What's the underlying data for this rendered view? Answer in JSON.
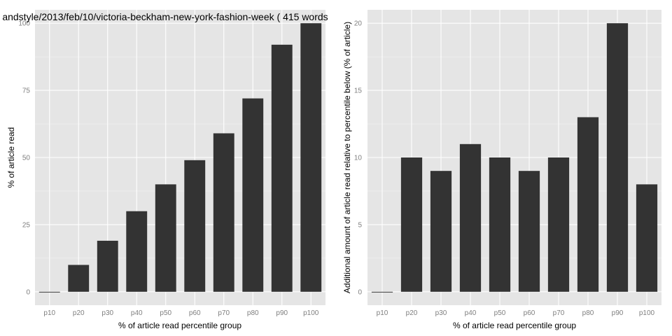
{
  "colors": {
    "panel_background": "#e5e5e5",
    "gridline": "#ffffff",
    "bar_fill": "#333333",
    "tick_label": "#7f7f7f",
    "text": "#000000"
  },
  "chart_data": [
    {
      "type": "bar",
      "title": "andstyle/2013/feb/10/victoria-beckham-new-york-fashion-week ( 415 words",
      "xlabel": "% of article read percentile group",
      "ylabel": "% of article read",
      "categories": [
        "p10",
        "p20",
        "p30",
        "p40",
        "p50",
        "p60",
        "p70",
        "p80",
        "p90",
        "p100"
      ],
      "values": [
        0,
        10,
        19,
        30,
        40,
        49,
        59,
        72,
        92,
        100
      ],
      "ylim": [
        -5,
        105
      ],
      "yticks": [
        0,
        25,
        50,
        75,
        100
      ],
      "ytick_labels": [
        "0",
        "25",
        "50",
        "75",
        "100"
      ],
      "grid": true
    },
    {
      "type": "bar",
      "title": "",
      "xlabel": "% of article read percentile group",
      "ylabel": "Additional amount of article read relative to percentile below (% of article)",
      "categories": [
        "p10",
        "p20",
        "p30",
        "p40",
        "p50",
        "p60",
        "p70",
        "p80",
        "p90",
        "p100"
      ],
      "values": [
        0,
        10,
        9,
        11,
        10,
        9,
        10,
        13,
        20,
        8
      ],
      "ylim": [
        -1,
        21
      ],
      "yticks": [
        0,
        5,
        10,
        15,
        20
      ],
      "ytick_labels": [
        "0",
        "5",
        "10",
        "15",
        "20"
      ],
      "grid": true
    }
  ]
}
